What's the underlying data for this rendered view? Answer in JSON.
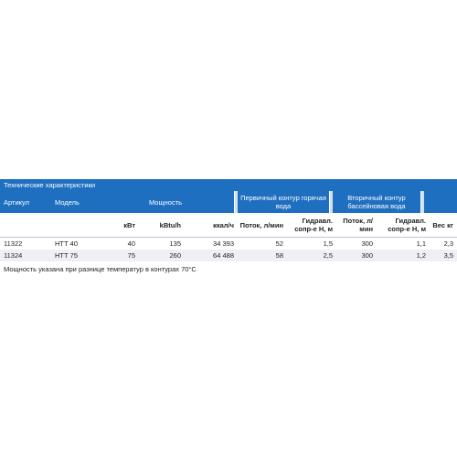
{
  "table": {
    "title": "Технические характеристики",
    "group_headers": {
      "article": "Артикул",
      "model": "Модель",
      "power": "Мощность",
      "primary": "Первичный контур горячая вода",
      "secondary": "Вторичный контур бассейновая вода"
    },
    "sub_headers": {
      "kw": "кВт",
      "kbtu": "kBtu/h",
      "kcal": "ккал/ч",
      "flow1": "Поток, л/мин",
      "hydr1": "Гидравл. сопр-е Н, м",
      "flow2": "Поток, л/мин",
      "hydr2": "Гидравл. сопр-е Н, м",
      "weight": "Вес кг"
    },
    "rows": [
      {
        "article": "11322",
        "model": "НТТ 40",
        "kw": "40",
        "kbtu": "135",
        "kcal": "34 393",
        "flow1": "52",
        "hydr1": "1,5",
        "flow2": "300",
        "hydr2": "1,1",
        "weight": "2,3"
      },
      {
        "article": "11324",
        "model": "НТТ 75",
        "kw": "75",
        "kbtu": "260",
        "kcal": "64 488",
        "flow1": "58",
        "hydr1": "2,5",
        "flow2": "300",
        "hydr2": "1,2",
        "weight": "3,5"
      }
    ],
    "note": "Мощность указана при разнице температур в контурах 70°С"
  },
  "colors": {
    "header_blue": "#1f6fc0",
    "light_blue": "#cfdff0",
    "row_grey": "#eef0f3"
  }
}
